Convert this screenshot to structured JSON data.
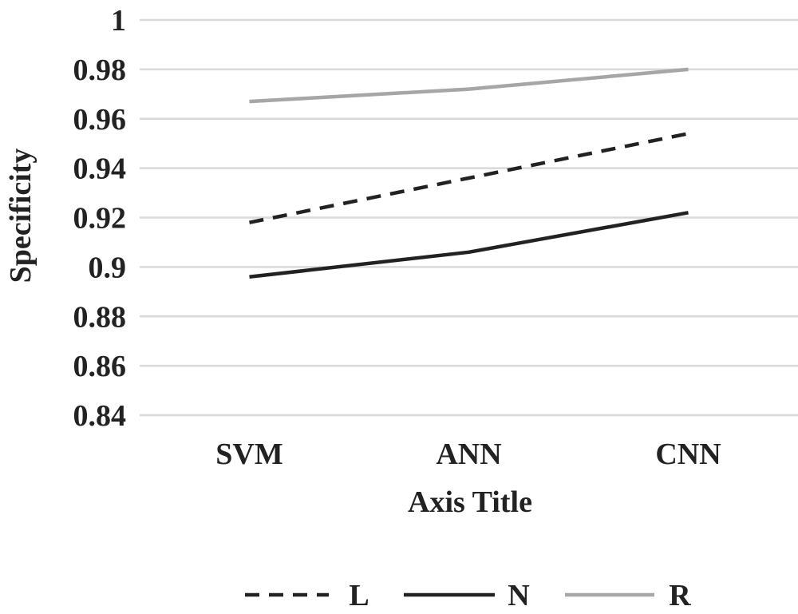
{
  "chart_data": {
    "type": "line",
    "title": "",
    "xlabel": "Axis Title",
    "ylabel": "Specificity",
    "categories": [
      "SVM",
      "ANN",
      "CNN"
    ],
    "ylim": [
      0.84,
      1
    ],
    "yticks": [
      "0.84",
      "0.86",
      "0.88",
      "0.9",
      "0.92",
      "0.94",
      "0.96",
      "0.98",
      "1"
    ],
    "grid": true,
    "legend_position": "bottom",
    "series": [
      {
        "name": "L",
        "values": [
          0.918,
          0.936,
          0.954
        ],
        "color": "#222222",
        "style": "dashed"
      },
      {
        "name": "N",
        "values": [
          0.896,
          0.906,
          0.922
        ],
        "color": "#222222",
        "style": "solid"
      },
      {
        "name": "R",
        "values": [
          0.967,
          0.972,
          0.98
        ],
        "color": "#a6a6a6",
        "style": "solid"
      }
    ]
  }
}
